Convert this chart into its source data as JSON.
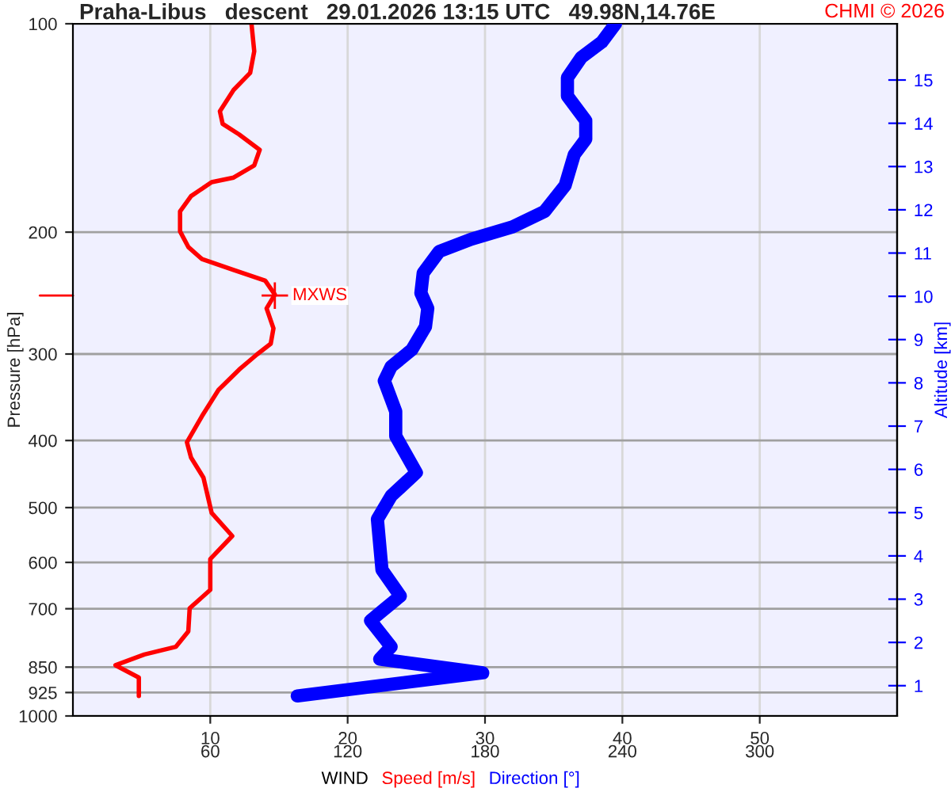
{
  "chart_data": {
    "type": "line",
    "orientation": "horizontal",
    "title": "Praha-Libus   descent   29.01.2026 13:15 UTC   49.98N,14.76E",
    "xlabel": "WIND",
    "ylabel": "Pressure [hPa]",
    "y2label": "Altitude [km]",
    "legend": "bottom",
    "series": [
      {
        "name": "Speed [m/s]",
        "color": "#ff0000",
        "x": [
          100,
          109.6,
          117.8,
          124.6,
          133.8,
          139.5,
          144.5,
          152.1,
          160.2,
          166.8,
          169.4,
          177.4,
          186.7,
          199.5,
          210.1,
          218.8,
          226.8,
          235,
          246.1,
          257.7,
          275.4,
          289.9,
          300.4,
          316,
          338,
          368.7,
          402.3,
          423.4,
          452.4,
          508.9,
          549.5,
          593.4,
          657.4,
          698.8,
          754.7,
          794.3,
          815,
          844.7,
          880,
          935.6
        ],
        "values": [
          13.0,
          13.2,
          12.9,
          11.7,
          10.7,
          10.9,
          12.1,
          13.6,
          13.2,
          11.7,
          10.1,
          8.6,
          7.8,
          7.8,
          8.4,
          9.4,
          11.7,
          14.0,
          14.7,
          14.1,
          14.6,
          14.4,
          13.4,
          12.1,
          10.6,
          9.4,
          8.3,
          8.6,
          9.5,
          10.1,
          11.6,
          10.0,
          10.0,
          8.5,
          8.4,
          7.5,
          5.2,
          3.1,
          4.8,
          4.8
        ]
      },
      {
        "name": "Direction [°]",
        "color": "#0000ff",
        "axis": "x2",
        "x": [
          100,
          106.3,
          111.9,
          119.6,
          127.2,
          138,
          146.8,
          154.5,
          171.2,
          186.7,
          196.5,
          204.7,
          213.3,
          229.1,
          244.9,
          257.7,
          274,
          295.8,
          312.8,
          327.9,
          363.1,
          394.1,
          445.1,
          481,
          519.6,
          615,
          671,
          728.1,
          794.3,
          827.5,
          866.4,
          935.6
        ],
        "values": [
          237,
          231,
          222,
          216,
          216,
          224,
          224,
          219,
          215,
          206,
          192,
          174,
          160,
          153,
          152,
          155,
          154,
          148,
          139,
          136,
          141,
          141,
          150,
          139,
          133,
          135,
          143,
          130,
          139,
          134,
          179,
          98
        ]
      }
    ],
    "xlim": [
      0,
      60
    ],
    "x2lim": [
      0,
      360
    ],
    "xticks": [
      10,
      20,
      30,
      40,
      50
    ],
    "x2ticks": [
      60,
      120,
      180,
      240,
      300
    ],
    "log": "y",
    "ylim": [
      1000,
      100
    ],
    "yticks": [
      100,
      200,
      300,
      400,
      500,
      600,
      700,
      850,
      925,
      1000
    ],
    "y2lim": [
      0.3,
      16.3
    ],
    "y2ticks": [
      1,
      2,
      3,
      4,
      5,
      6,
      7,
      8,
      9,
      10,
      11,
      12,
      13,
      14,
      15
    ],
    "grid": true,
    "annotations": [
      {
        "text": "MXWS",
        "x": 14.7,
        "y": 247
      },
      "CHMI © 2026"
    ]
  }
}
